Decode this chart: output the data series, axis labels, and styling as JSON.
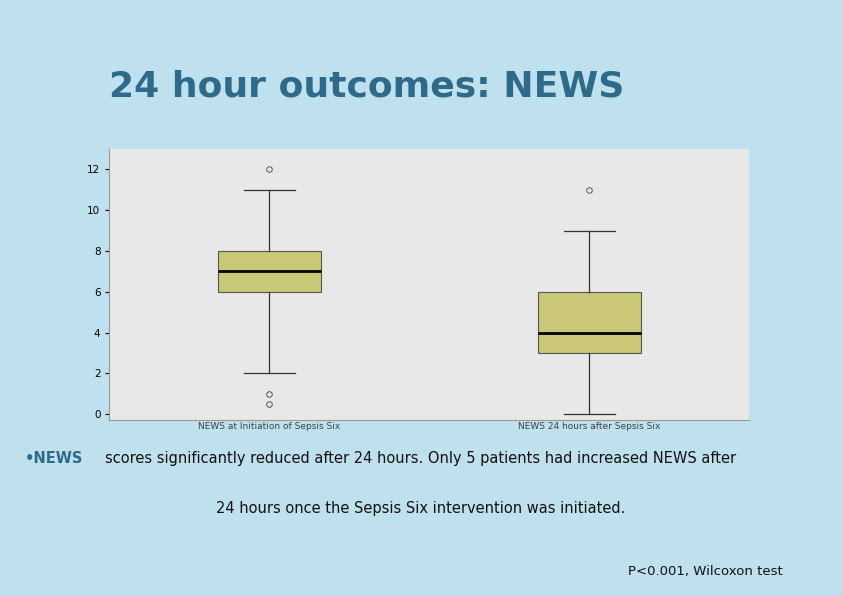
{
  "title": "24 hour outcomes: NEWS",
  "title_color": "#2E6B8A",
  "background_color": "#BFE0ED",
  "plot_bg_color": "#E8E8E8",
  "box1": {
    "label": "NEWS at Initiation of Sepsis Six",
    "q1": 6.0,
    "median": 7.0,
    "q3": 8.0,
    "whisker_low": 2.0,
    "whisker_high": 11.0,
    "outliers": [
      12.0,
      1.0,
      0.5
    ],
    "x": 1
  },
  "box2": {
    "label": "NEWS 24 hours after Sepsis Six",
    "q1": 3.0,
    "median": 4.0,
    "q3": 6.0,
    "whisker_low": 0.0,
    "whisker_high": 9.0,
    "outliers": [
      11.0
    ],
    "x": 2
  },
  "box_color": "#C8C878",
  "box_edgecolor": "#555555",
  "median_color": "#000000",
  "whisker_color": "#333333",
  "outlier_size": 4,
  "ylim": [
    -0.3,
    13
  ],
  "yticks": [
    0,
    2,
    4,
    6,
    8,
    10,
    12
  ],
  "bullet_color": "#2E6B8A",
  "annotation_line2": "24 hours once the Sepsis Six intervention was initiated.",
  "pvalue_text": "P<0.001, Wilcoxon test",
  "xlabel_fontsize": 6.5,
  "annotation_fontsize": 10.5,
  "pvalue_fontsize": 9.5,
  "title_fontsize": 26,
  "fig_width": 8.42,
  "fig_height": 5.96,
  "fig_dpi": 100
}
